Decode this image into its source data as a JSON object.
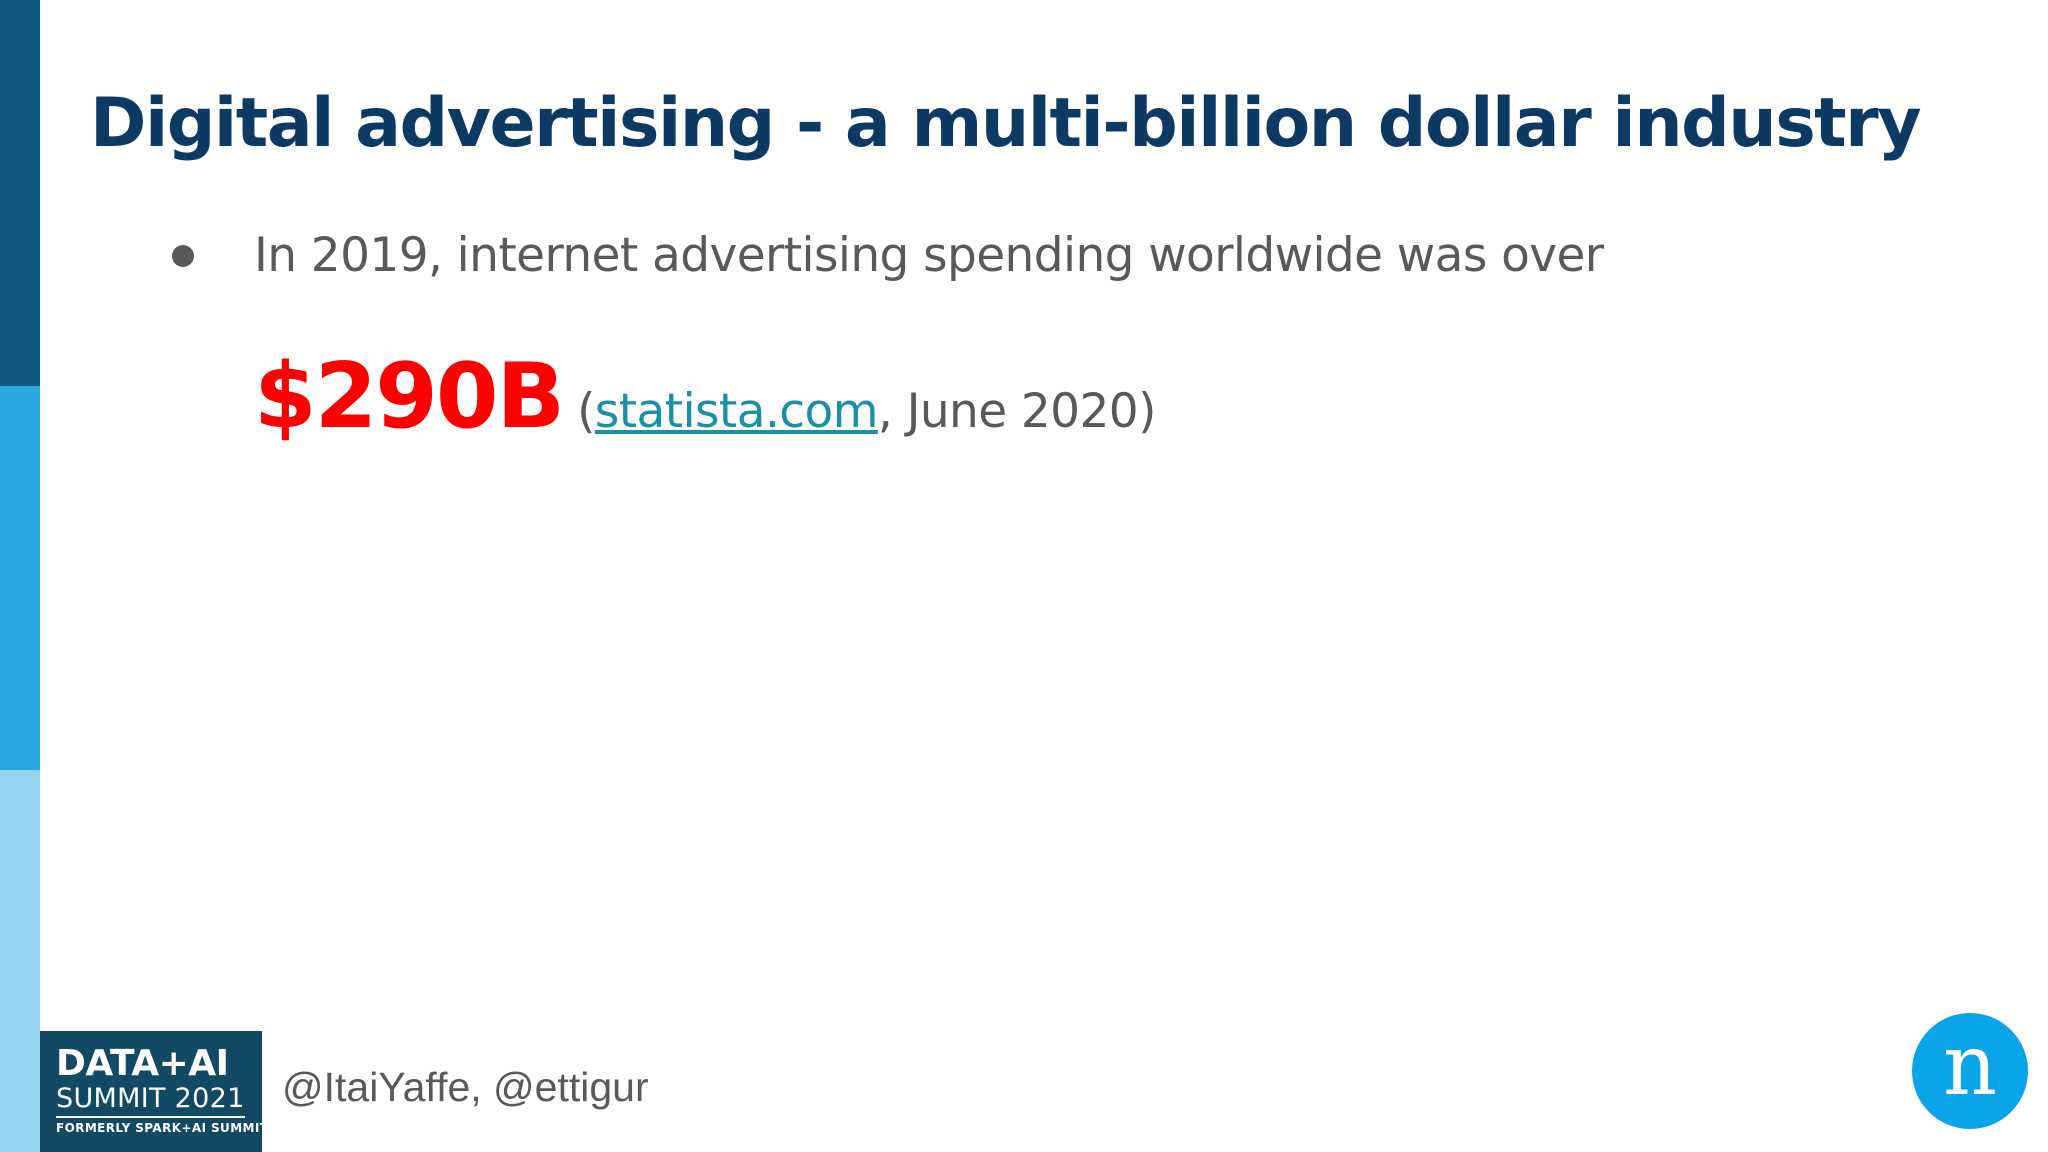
{
  "colors": {
    "title": "#0d3a64",
    "body_text": "#595959",
    "bullet": "#595959",
    "highlight_value": "#ff0000",
    "link": "#1a8fa8",
    "sidebar_dark": "#0e5a80",
    "sidebar_mid": "#29a8df",
    "sidebar_light": "#92d3f0",
    "logo_bg": "#124a66",
    "brand_circle": "#0aa5e8"
  },
  "slide": {
    "title": "Digital advertising - a multi-billion dollar industry",
    "bullet_text": "In 2019, internet advertising spending worldwide was over",
    "value": "$290B",
    "source_open": "(",
    "source_link": "statista.com",
    "source_rest": ", June 2020)"
  },
  "footer": {
    "logo_line1": "DATA+AI",
    "logo_line2": "SUMMIT 2021",
    "logo_line3": "FORMERLY SPARK+AI SUMMIT",
    "handles": "@ItaiYaffe, @ettigur",
    "brand_letter": "n"
  },
  "icons": {
    "bullet": "bullet-dot-icon",
    "brand": "brand-n-icon"
  }
}
